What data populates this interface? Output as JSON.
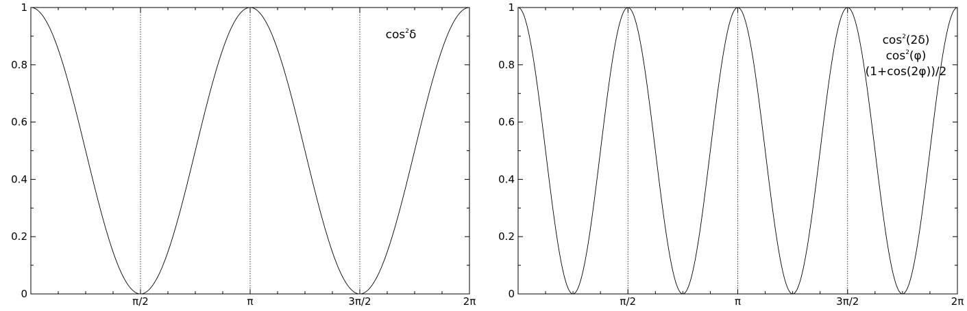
{
  "chart_data": [
    {
      "type": "line",
      "panel": "left",
      "x_domain_radians": [
        0,
        6.283185307
      ],
      "xlim_labels": [
        "",
        "2π"
      ],
      "ylim": [
        0,
        1
      ],
      "y_ticks": [
        {
          "value": 0,
          "label": "0"
        },
        {
          "value": 0.2,
          "label": "0.2"
        },
        {
          "value": 0.4,
          "label": "0.4"
        },
        {
          "value": 0.6,
          "label": "0.6"
        },
        {
          "value": 0.8,
          "label": "0.8"
        },
        {
          "value": 1,
          "label": "1"
        }
      ],
      "x_ticks": [
        {
          "value": 1.5707963,
          "label": "π/2"
        },
        {
          "value": 3.1415927,
          "label": "π"
        },
        {
          "value": 4.712389,
          "label": "3π/2"
        },
        {
          "value": 6.2831853,
          "label": "2π"
        }
      ],
      "vertical_dotted_lines": [
        1.5707963,
        3.1415927,
        4.712389
      ],
      "series": [
        {
          "name": "cos²δ",
          "function": "cos^2(x)",
          "frequency": 1
        }
      ],
      "legend": {
        "base": "cos",
        "sup": "2",
        "rest": "δ"
      },
      "grid": false,
      "legend_position": "top-right"
    },
    {
      "type": "line",
      "panel": "right",
      "x_domain_radians": [
        0,
        6.283185307
      ],
      "ylim": [
        0,
        1
      ],
      "y_ticks": [
        {
          "value": 0,
          "label": "0"
        },
        {
          "value": 0.2,
          "label": "0.2"
        },
        {
          "value": 0.4,
          "label": "0.4"
        },
        {
          "value": 0.6,
          "label": "0.6"
        },
        {
          "value": 0.8,
          "label": "0.8"
        },
        {
          "value": 1,
          "label": "1"
        }
      ],
      "x_ticks": [
        {
          "value": 1.5707963,
          "label": "π/2"
        },
        {
          "value": 3.1415927,
          "label": "π"
        },
        {
          "value": 4.712389,
          "label": "3π/2"
        },
        {
          "value": 6.2831853,
          "label": "2π"
        }
      ],
      "vertical_dotted_lines": [
        1.5707963,
        3.1415927,
        4.712389
      ],
      "series": [
        {
          "name": "cos²(2δ)",
          "function": "cos^2(2x)",
          "frequency": 2
        }
      ],
      "legend_lines": [
        {
          "base": "cos",
          "sup": "2",
          "rest": "(2δ)"
        },
        {
          "base": "cos",
          "sup": "2",
          "rest": "(φ)"
        },
        {
          "base": "(1+cos(2φ))/2",
          "sup": "",
          "rest": ""
        }
      ],
      "grid": false,
      "legend_position": "top-right"
    }
  ]
}
